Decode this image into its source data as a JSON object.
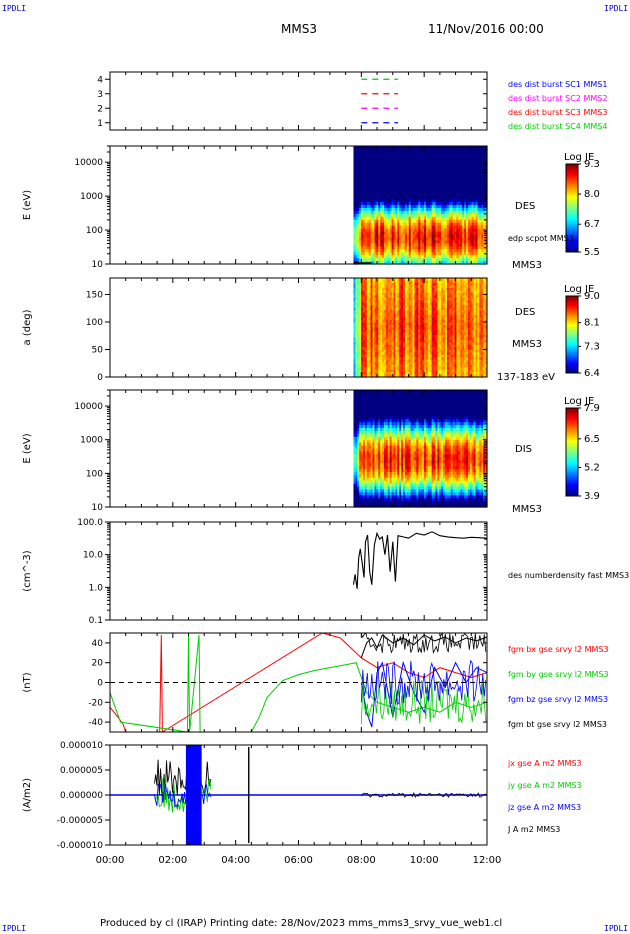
{
  "header": {
    "corner_label": "IPDLI",
    "spacecraft": "MMS3",
    "datetime": "11/Nov/2016 00:00"
  },
  "footer": {
    "text": "Produced by cl (IRAP)   Printing date: 28/Nov/2023   mms_mms3_srvy_vue_web1.cl"
  },
  "colors": {
    "bx": "#ff0000",
    "by": "#00cc00",
    "bz": "#0000ff",
    "bt": "#000000",
    "sc1": "#0000ff",
    "sc2": "#ff00ff",
    "sc3": "#ff0000",
    "sc4": "#00cc00"
  },
  "chart_data": [
    {
      "type": "line",
      "panel": "burst",
      "ylim": [
        0.5,
        4.5
      ],
      "yticks": [
        1,
        2,
        3,
        4
      ],
      "legend": [
        "des dist burst SC1 MMS1",
        "des dist burst SC2 MMS2",
        "des dist burst SC3 MMS3",
        "des dist burst SC4 MMS4"
      ],
      "series": [
        {
          "name": "des dist burst SC1 MMS1",
          "y": 1,
          "x_start": "08:00",
          "x_end": "09:10",
          "dashed": true
        },
        {
          "name": "des dist burst SC2 MMS2",
          "y": 2,
          "x_start": "08:00",
          "x_end": "09:10",
          "dashed": true
        },
        {
          "name": "des dist burst SC3 MMS3",
          "y": 3,
          "x_start": "08:00",
          "x_end": "09:10",
          "dashed": true
        },
        {
          "name": "des dist burst SC4 MMS4",
          "y": 4,
          "x_start": "08:00",
          "x_end": "09:10",
          "dashed": true
        }
      ]
    },
    {
      "type": "heatmap",
      "panel": "des_energy",
      "ylabel": "E (eV)",
      "yscale": "log",
      "ylim": [
        10,
        30000
      ],
      "yticks": [
        "10",
        "100",
        "1000",
        "10000"
      ],
      "label": "DES",
      "sublabel": "MMS3",
      "overlay_label": "edp scpot MMS3",
      "colorbar": {
        "title": "Log JE",
        "ticks": [
          "9.3",
          "8.0",
          "6.7",
          "5.5"
        ],
        "range": [
          5.5,
          9.3
        ]
      },
      "data_start": "07:45",
      "peak_energy_eV": 80
    },
    {
      "type": "heatmap",
      "panel": "des_pitch",
      "ylabel": "a (deg)",
      "ylim": [
        0,
        180
      ],
      "yticks": [
        "0",
        "50",
        "100",
        "150"
      ],
      "label": "DES",
      "sublabel": "MMS3",
      "energy_band": "137-183 eV",
      "colorbar": {
        "title": "Log JE",
        "ticks": [
          "9.0",
          "8.1",
          "7.3",
          "6.4"
        ],
        "range": [
          6.4,
          9.0
        ]
      },
      "data_start": "07:45"
    },
    {
      "type": "heatmap",
      "panel": "dis_energy",
      "ylabel": "E (eV)",
      "yscale": "log",
      "ylim": [
        10,
        30000
      ],
      "yticks": [
        "10",
        "100",
        "1000",
        "10000"
      ],
      "label": "DIS",
      "sublabel": "MMS3",
      "colorbar": {
        "title": "Log JE",
        "ticks": [
          "7.9",
          "6.5",
          "5.2",
          "3.9"
        ],
        "range": [
          3.9,
          7.9
        ]
      },
      "data_start": "07:45",
      "peak_energy_eV": 1000
    },
    {
      "type": "line",
      "panel": "density",
      "ylabel": "(cm^-3)",
      "yscale": "log",
      "ylim": [
        0.1,
        100
      ],
      "yticks": [
        "0.1",
        "1.0",
        "10.0",
        "100.0"
      ],
      "series": [
        {
          "name": "des numberdensity fast MMS3",
          "x": [
            "07:45",
            "07:48",
            "07:52",
            "07:55",
            "07:58",
            "08:02",
            "08:05",
            "08:08",
            "08:12",
            "08:16",
            "08:20",
            "08:25",
            "08:30",
            "08:35",
            "08:40",
            "08:45",
            "08:50",
            "08:55",
            "09:00",
            "09:05",
            "09:10",
            "09:20",
            "09:30",
            "09:45",
            "10:00",
            "10:15",
            "10:30",
            "10:45",
            "11:00",
            "11:15",
            "11:30",
            "11:45",
            "12:00"
          ],
          "y": [
            1.2,
            2.5,
            0.9,
            8.0,
            15.0,
            5.0,
            2.0,
            25.0,
            40.0,
            3.0,
            1.2,
            20.0,
            45.0,
            30.0,
            35.0,
            10.0,
            40.0,
            3.0,
            25.0,
            1.5,
            38.0,
            35.0,
            32.0,
            45.0,
            40.0,
            50.0,
            38.0,
            35.0,
            33.0,
            32.0,
            34.0,
            33.0,
            32.0
          ]
        }
      ]
    },
    {
      "type": "line",
      "panel": "field",
      "ylabel": "(nT)",
      "ylim": [
        -50,
        50
      ],
      "yticks": [
        "-40",
        "-20",
        "0",
        "20",
        "40"
      ],
      "series": [
        {
          "name": "fgm bx gse srvy l2 MMS3",
          "color": "#ff0000",
          "x": [
            "00:00",
            "00:15",
            "00:25",
            "00:30",
            "01:35",
            "01:38",
            "01:40",
            "06:45",
            "07:00",
            "07:20",
            "07:40",
            "08:00",
            "08:30",
            "09:00",
            "09:30",
            "10:00",
            "10:30",
            "11:00",
            "11:30",
            "12:00"
          ],
          "y": [
            -25,
            -35,
            -42,
            -50,
            -50,
            48,
            -50,
            50,
            48,
            45,
            35,
            25,
            15,
            20,
            10,
            5,
            15,
            10,
            5,
            10
          ]
        },
        {
          "name": "fgm by gse srvy l2 MMS3",
          "color": "#00cc00",
          "x": [
            "00:00",
            "00:10",
            "00:20",
            "02:28",
            "02:30",
            "02:32",
            "02:50",
            "02:52",
            "04:30",
            "04:45",
            "05:00",
            "05:30",
            "06:00",
            "06:30",
            "07:00",
            "07:30",
            "07:50",
            "08:10",
            "08:30",
            "09:00",
            "09:30",
            "10:00",
            "10:30",
            "11:00",
            "11:30",
            "12:00"
          ],
          "y": [
            -10,
            -25,
            -40,
            -50,
            48,
            -50,
            48,
            -50,
            -50,
            -35,
            -15,
            2,
            8,
            12,
            15,
            18,
            20,
            -10,
            -20,
            -25,
            -30,
            -25,
            -30,
            -20,
            -25,
            -20
          ]
        },
        {
          "name": "fgm bz gse srvy l2 MMS3",
          "color": "#0000ff",
          "x": [
            "08:00",
            "08:10",
            "08:20",
            "08:30",
            "08:40",
            "09:00",
            "09:20",
            "09:40",
            "10:00",
            "10:20",
            "10:40",
            "11:00",
            "11:20",
            "11:40",
            "12:00"
          ],
          "y": [
            0,
            -30,
            -45,
            10,
            20,
            -35,
            20,
            -10,
            -30,
            15,
            -5,
            20,
            0,
            15,
            10
          ]
        },
        {
          "name": "fgm bt gse srvy l2 MMS3",
          "color": "#000000",
          "x": [
            "08:00",
            "08:10",
            "08:20",
            "08:30",
            "08:40",
            "09:00",
            "09:20",
            "09:40",
            "10:00",
            "10:20",
            "10:40",
            "11:00",
            "11:20",
            "11:40",
            "12:00"
          ],
          "y": [
            25,
            40,
            45,
            35,
            48,
            40,
            45,
            38,
            48,
            42,
            46,
            40,
            45,
            42,
            46
          ]
        }
      ],
      "reference_line": 0
    },
    {
      "type": "line",
      "panel": "current",
      "ylabel": "(A/m2)",
      "ylim": [
        -1e-05,
        1e-05
      ],
      "yticks": [
        "-0.000010",
        "-0.000005",
        "0.000000",
        "0.000005",
        "0.000010"
      ],
      "series": [
        {
          "name": "jx gse A m2 MMS3",
          "color": "#ff0000"
        },
        {
          "name": "jy gse A m2 MMS3",
          "color": "#00cc00"
        },
        {
          "name": "jz gse A m2 MMS3",
          "color": "#0000ff"
        },
        {
          "name": "J A m2 MMS3",
          "color": "#000000"
        }
      ],
      "active_interval": [
        "01:25",
        "03:15"
      ],
      "spike_time": "04:25"
    }
  ],
  "xaxis": {
    "ticks": [
      "00:00",
      "02:00",
      "04:00",
      "06:00",
      "08:00",
      "10:00",
      "12:00"
    ],
    "range_hours": [
      0,
      12
    ]
  }
}
